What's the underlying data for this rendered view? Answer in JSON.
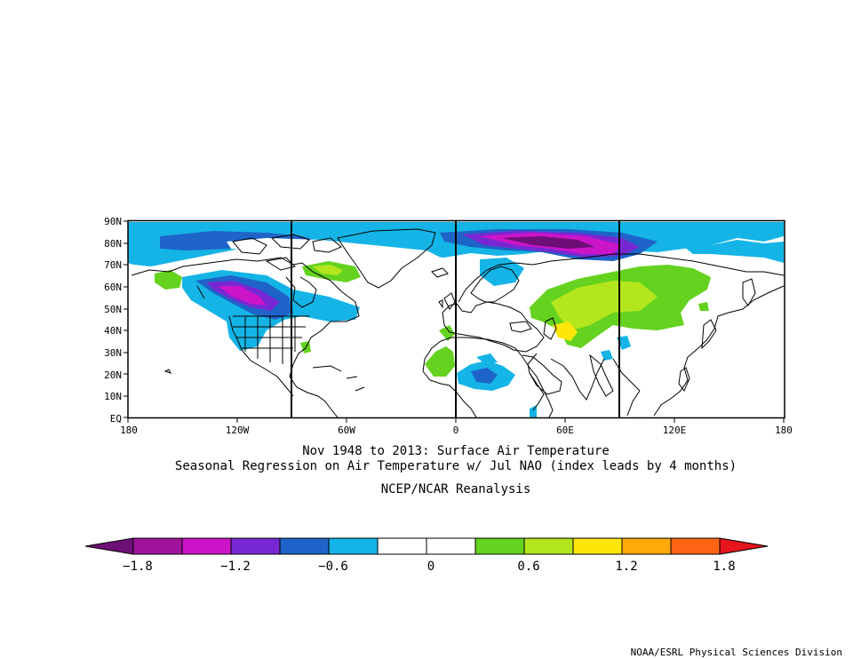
{
  "map": {
    "title_line1": "Nov 1948 to 2013: Surface Air Temperature",
    "title_line2": "Seasonal Regression on Air Temperature  w/ Jul NAO (index leads by 4 months)",
    "source": "NCEP/NCAR Reanalysis",
    "credit": "NOAA/ESRL Physical Sciences Division",
    "lat_labels": [
      "90N",
      "80N",
      "70N",
      "60N",
      "50N",
      "40N",
      "30N",
      "20N",
      "10N",
      "EQ"
    ],
    "lon_labels": [
      "180",
      "120W",
      "60W",
      "0",
      "60E",
      "120E",
      "180"
    ],
    "domain": {
      "lon_min": -180,
      "lon_max": 180,
      "lat_min": 0,
      "lat_max": 90
    }
  },
  "colorbar": {
    "tick_labels": [
      "-1.8",
      "-1.2",
      "-0.6",
      "0",
      "0.6",
      "1.2",
      "1.8"
    ],
    "colors": [
      "#6e0f78",
      "#a0149b",
      "#cc14c8",
      "#7828d2",
      "#1e64c8",
      "#14b4e6",
      "#ffffff",
      "#ffffff",
      "#64d21e",
      "#b4e61e",
      "#ffe60a",
      "#ffaa0a",
      "#ff6414",
      "#e6141e"
    ]
  },
  "style": {
    "cold_strong": "#b41eaa",
    "cold_mid": "#1e64c8",
    "cold_weak": "#14b4e6",
    "warm_weak": "#64d21e",
    "warm_mid": "#b4e61e",
    "warm_strong": "#ffe60a",
    "coast": "#000000"
  }
}
